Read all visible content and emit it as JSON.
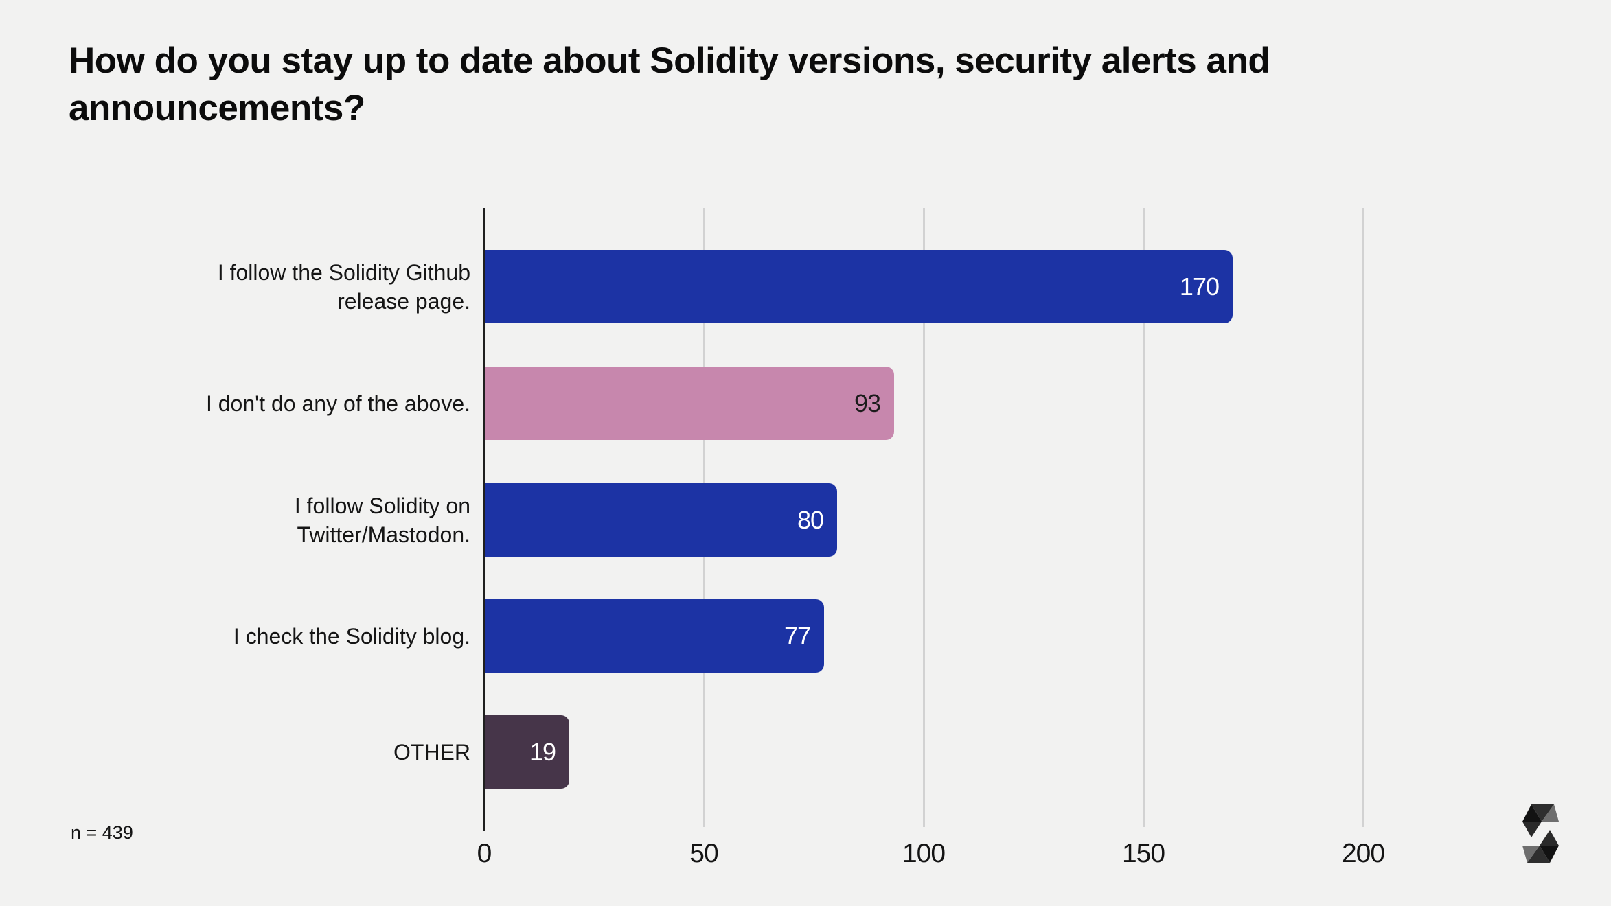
{
  "chart_data": {
    "type": "bar",
    "orientation": "horizontal",
    "title": "How do you stay up to date about Solidity versions, security alerts and announcements?",
    "categories": [
      "I follow the Solidity Github release page.",
      "I don't do any of the above.",
      "I follow Solidity on Twitter/Mastodon.",
      "I check the Solidity blog.",
      "OTHER"
    ],
    "values": [
      170,
      93,
      80,
      77,
      19
    ],
    "bar_colors": [
      "#1c33a4",
      "#c787ad",
      "#1c33a4",
      "#1c33a4",
      "#463549"
    ],
    "value_label_colors": [
      "#ffffff",
      "#1b1b1b",
      "#ffffff",
      "#ffffff",
      "#ffffff"
    ],
    "xticks": [
      0,
      50,
      100,
      150,
      200
    ],
    "xlim": [
      0,
      250
    ],
    "grid": "vertical-gridlines",
    "legend": "none",
    "value_labels": "inside-end"
  },
  "footer": {
    "sample_size_label": "n = 439"
  },
  "branding": {
    "logo_name": "solidity-logo"
  },
  "colors": {
    "background": "#f2f2f1",
    "axis": "#1f1f1f",
    "gridline": "#d2d2d2",
    "accent_blue": "#1c33a4",
    "accent_pink": "#c787ad",
    "accent_purple": "#463549"
  }
}
